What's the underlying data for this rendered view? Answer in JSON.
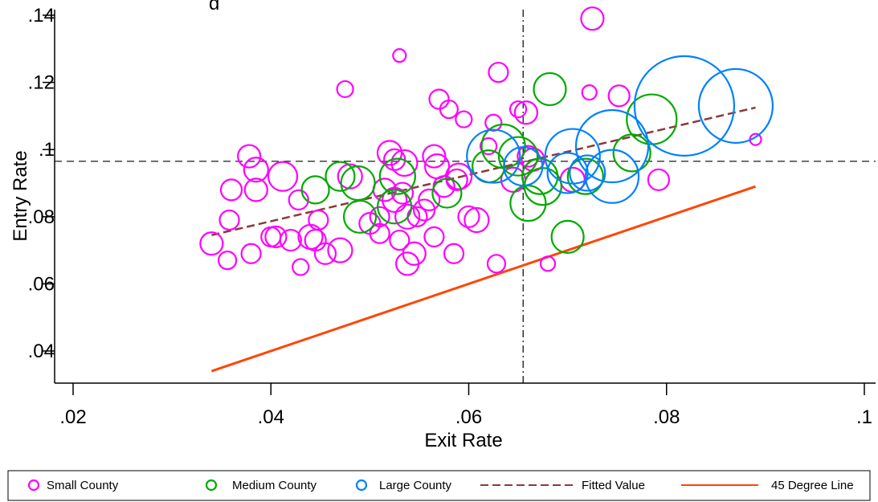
{
  "chart_data": {
    "type": "scatter",
    "title": "g_",
    "xlabel": "Exit Rate",
    "ylabel": "Entry Rate",
    "xlim": [
      0.02,
      0.1
    ],
    "ylim": [
      0.03,
      0.14
    ],
    "x_ticks": [
      0.02,
      0.04,
      0.06,
      0.08,
      0.1
    ],
    "x_tick_labels": [
      ".02",
      ".04",
      ".06",
      ".08",
      ".1"
    ],
    "y_ticks": [
      0.04,
      0.06,
      0.08,
      0.1,
      0.12,
      0.14
    ],
    "y_tick_labels": [
      ".04",
      ".06",
      ".08",
      ".1",
      ".12",
      ".14"
    ],
    "grid": false,
    "legend_position": "bottom",
    "reference_lines": {
      "mean_exit_rate": 0.0655,
      "mean_entry_rate": 0.0965
    },
    "colors": {
      "small": "#ff00ff",
      "medium": "#00aa00",
      "large": "#0080ff",
      "fitted": "#8b3a3a",
      "deg45": "#ff4500",
      "reference": "#000000"
    },
    "series": [
      {
        "name": "Small County",
        "key": "small",
        "points": [
          [
            0.034,
            0.072,
            1.4
          ],
          [
            0.0356,
            0.067,
            1.1
          ],
          [
            0.0358,
            0.079,
            1.2
          ],
          [
            0.036,
            0.088,
            1.3
          ],
          [
            0.0378,
            0.098,
            1.4
          ],
          [
            0.038,
            0.069,
            1.2
          ],
          [
            0.0385,
            0.094,
            1.5
          ],
          [
            0.0385,
            0.088,
            1.4
          ],
          [
            0.04,
            0.074,
            1.2
          ],
          [
            0.0405,
            0.074,
            1.3
          ],
          [
            0.0412,
            0.092,
            1.8
          ],
          [
            0.042,
            0.073,
            1.3
          ],
          [
            0.0428,
            0.085,
            1.2
          ],
          [
            0.043,
            0.065,
            1.0
          ],
          [
            0.044,
            0.074,
            1.5
          ],
          [
            0.0445,
            0.073,
            1.3
          ],
          [
            0.0448,
            0.079,
            1.2
          ],
          [
            0.0455,
            0.069,
            1.3
          ],
          [
            0.047,
            0.07,
            1.5
          ],
          [
            0.0475,
            0.118,
            1.0
          ],
          [
            0.048,
            0.092,
            1.5
          ],
          [
            0.05,
            0.078,
            1.3
          ],
          [
            0.051,
            0.08,
            1.2
          ],
          [
            0.051,
            0.075,
            1.2
          ],
          [
            0.0515,
            0.088,
            1.4
          ],
          [
            0.052,
            0.099,
            1.5
          ],
          [
            0.0525,
            0.097,
            1.3
          ],
          [
            0.0525,
            0.085,
            1.5
          ],
          [
            0.053,
            0.073,
            1.2
          ],
          [
            0.053,
            0.128,
            0.8
          ],
          [
            0.0533,
            0.087,
            1.3
          ],
          [
            0.0535,
            0.096,
            1.6
          ],
          [
            0.0538,
            0.066,
            1.4
          ],
          [
            0.0538,
            0.08,
            1.5
          ],
          [
            0.0545,
            0.069,
            1.4
          ],
          [
            0.0548,
            0.08,
            1.2
          ],
          [
            0.0555,
            0.082,
            1.3
          ],
          [
            0.056,
            0.085,
            1.3
          ],
          [
            0.0565,
            0.098,
            1.4
          ],
          [
            0.0565,
            0.074,
            1.2
          ],
          [
            0.0568,
            0.095,
            1.5
          ],
          [
            0.057,
            0.115,
            1.2
          ],
          [
            0.0575,
            0.089,
            1.3
          ],
          [
            0.058,
            0.112,
            1.1
          ],
          [
            0.0585,
            0.069,
            1.2
          ],
          [
            0.0588,
            0.091,
            1.3
          ],
          [
            0.059,
            0.092,
            1.6
          ],
          [
            0.0595,
            0.109,
            1.0
          ],
          [
            0.06,
            0.08,
            1.3
          ],
          [
            0.0608,
            0.079,
            1.5
          ],
          [
            0.062,
            0.101,
            1.0
          ],
          [
            0.0625,
            0.108,
            1.0
          ],
          [
            0.0628,
            0.066,
            1.1
          ],
          [
            0.063,
            0.123,
            1.2
          ],
          [
            0.0645,
            0.091,
            1.5
          ],
          [
            0.065,
            0.112,
            1.0
          ],
          [
            0.0658,
            0.111,
            1.4
          ],
          [
            0.066,
            0.098,
            1.3
          ],
          [
            0.0665,
            0.097,
            1.4
          ],
          [
            0.068,
            0.066,
            0.9
          ],
          [
            0.0705,
            0.091,
            1.5
          ],
          [
            0.0722,
            0.117,
            0.9
          ],
          [
            0.0725,
            0.139,
            1.4
          ],
          [
            0.0752,
            0.116,
            1.3
          ],
          [
            0.0792,
            0.091,
            1.3
          ],
          [
            0.089,
            0.103,
            0.7
          ]
        ]
      },
      {
        "name": "Medium County",
        "key": "medium",
        "points": [
          [
            0.0445,
            0.088,
            1.7
          ],
          [
            0.047,
            0.092,
            1.8
          ],
          [
            0.0488,
            0.09,
            2.1
          ],
          [
            0.049,
            0.08,
            2.0
          ],
          [
            0.0525,
            0.083,
            2.1
          ],
          [
            0.0528,
            0.092,
            2.2
          ],
          [
            0.0578,
            0.087,
            1.8
          ],
          [
            0.062,
            0.095,
            2.0
          ],
          [
            0.0635,
            0.101,
            2.7
          ],
          [
            0.065,
            0.098,
            2.4
          ],
          [
            0.066,
            0.084,
            2.2
          ],
          [
            0.0672,
            0.092,
            2.2
          ],
          [
            0.0675,
            0.089,
            2.3
          ],
          [
            0.0682,
            0.118,
            2.0
          ],
          [
            0.07,
            0.074,
            2.0
          ],
          [
            0.0718,
            0.092,
            2.2
          ],
          [
            0.0765,
            0.099,
            2.3
          ],
          [
            0.0785,
            0.109,
            3.1
          ]
        ]
      },
      {
        "name": "Large County",
        "key": "large",
        "points": [
          [
            0.0625,
            0.098,
            3.3
          ],
          [
            0.0655,
            0.095,
            2.4
          ],
          [
            0.07,
            0.093,
            2.5
          ],
          [
            0.0705,
            0.098,
            3.4
          ],
          [
            0.072,
            0.093,
            2.2
          ],
          [
            0.0745,
            0.092,
            3.3
          ],
          [
            0.0745,
            0.101,
            4.5
          ],
          [
            0.0818,
            0.113,
            6.2
          ],
          [
            0.087,
            0.113,
            4.6
          ]
        ]
      }
    ],
    "lines": [
      {
        "name": "Fitted Value",
        "style": "dashed",
        "x": [
          0.034,
          0.089
        ],
        "y": [
          0.0745,
          0.1125
        ]
      },
      {
        "name": "45 Degree Line",
        "style": "solid",
        "x": [
          0.034,
          0.089
        ],
        "y": [
          0.034,
          0.089
        ]
      }
    ]
  }
}
